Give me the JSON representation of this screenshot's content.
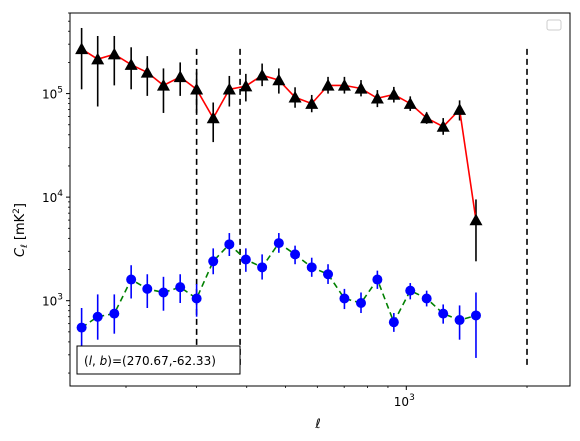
{
  "chart_data": {
    "type": "line",
    "xlabel": "ℓ",
    "ylabel": "C",
    "ylabel_sub": "ℓ",
    "ylabel_unit": "[mK",
    "ylabel_unit_sup": "2",
    "ylabel_unit_end": "]",
    "xscale": "log",
    "yscale": "log",
    "xlim": [
      145,
      2560
    ],
    "ylim": [
      150,
      600000
    ],
    "x_ticks": [
      {
        "value": 1000,
        "label_base": "10",
        "label_exp": "3"
      }
    ],
    "y_ticks": [
      {
        "value": 1000,
        "label_base": "10",
        "label_exp": "3"
      },
      {
        "value": 10000,
        "label_base": "10",
        "label_exp": "4"
      },
      {
        "value": 100000,
        "label_base": "10",
        "label_exp": "5"
      }
    ],
    "vlines": [
      300,
      385,
      2000
    ],
    "vline_range": [
      230,
      270000
    ],
    "annotation": "(l, b)=(270.67,-62.33)",
    "annotation_parts": [
      "(",
      "l",
      ", ",
      "b",
      ")=(270.67,-62.33)"
    ],
    "legend": "top-right",
    "colors": {
      "upper_line": "#ff0000",
      "upper_marker": "#000000",
      "lower_line": "#008000",
      "lower_marker": "#0000ff"
    },
    "series": [
      {
        "marker": "triangle",
        "line": "solid",
        "points": [
          {
            "x": 155,
            "y": 270000,
            "lo": 110000,
            "hi": 430000
          },
          {
            "x": 170,
            "y": 215000,
            "lo": 75000,
            "hi": 360000
          },
          {
            "x": 187,
            "y": 240000,
            "lo": 120000,
            "hi": 360000
          },
          {
            "x": 206,
            "y": 190000,
            "lo": 110000,
            "hi": 280000
          },
          {
            "x": 226,
            "y": 160000,
            "lo": 95000,
            "hi": 230000
          },
          {
            "x": 248,
            "y": 120000,
            "lo": 65000,
            "hi": 175000
          },
          {
            "x": 273,
            "y": 145000,
            "lo": 95000,
            "hi": 200000
          },
          {
            "x": 300,
            "y": 110000,
            "lo": 65000,
            "hi": 160000
          },
          {
            "x": 330,
            "y": 58000,
            "lo": 34000,
            "hi": 82000
          },
          {
            "x": 362,
            "y": 110000,
            "lo": 75000,
            "hi": 148000
          },
          {
            "x": 398,
            "y": 118000,
            "lo": 84000,
            "hi": 155000
          },
          {
            "x": 437,
            "y": 150000,
            "lo": 118000,
            "hi": 195000
          },
          {
            "x": 481,
            "y": 135000,
            "lo": 100000,
            "hi": 175000
          },
          {
            "x": 528,
            "y": 92000,
            "lo": 73000,
            "hi": 115000
          },
          {
            "x": 581,
            "y": 80000,
            "lo": 66000,
            "hi": 97000
          },
          {
            "x": 638,
            "y": 120000,
            "lo": 100000,
            "hi": 145000
          },
          {
            "x": 701,
            "y": 120000,
            "lo": 100000,
            "hi": 145000
          },
          {
            "x": 771,
            "y": 112000,
            "lo": 94000,
            "hi": 135000
          },
          {
            "x": 847,
            "y": 90000,
            "lo": 74000,
            "hi": 108000
          },
          {
            "x": 931,
            "y": 98000,
            "lo": 82000,
            "hi": 116000
          },
          {
            "x": 1023,
            "y": 80000,
            "lo": 68000,
            "hi": 94000
          },
          {
            "x": 1124,
            "y": 58000,
            "lo": 51000,
            "hi": 66000
          },
          {
            "x": 1236,
            "y": 48000,
            "lo": 40000,
            "hi": 58000
          },
          {
            "x": 1358,
            "y": 70000,
            "lo": 55000,
            "hi": 86000
          },
          {
            "x": 1492,
            "y": 6000,
            "lo": 2400,
            "hi": 9500
          }
        ]
      },
      {
        "marker": "circle",
        "line": "dashed",
        "points": [
          {
            "x": 155,
            "y": 550,
            "lo": 350,
            "hi": 850
          },
          {
            "x": 170,
            "y": 700,
            "lo": 420,
            "hi": 1150
          },
          {
            "x": 187,
            "y": 750,
            "lo": 480,
            "hi": 1150
          },
          {
            "x": 206,
            "y": 1600,
            "lo": 1050,
            "hi": 2200
          },
          {
            "x": 226,
            "y": 1300,
            "lo": 850,
            "hi": 1800
          },
          {
            "x": 248,
            "y": 1200,
            "lo": 800,
            "hi": 1700
          },
          {
            "x": 273,
            "y": 1350,
            "lo": 950,
            "hi": 1800
          },
          {
            "x": 300,
            "y": 1050,
            "lo": 700,
            "hi": 1450
          },
          {
            "x": 330,
            "y": 2400,
            "lo": 1800,
            "hi": 3200
          },
          {
            "x": 362,
            "y": 3500,
            "lo": 2700,
            "hi": 4500
          },
          {
            "x": 398,
            "y": 2500,
            "lo": 1900,
            "hi": 3200
          },
          {
            "x": 437,
            "y": 2100,
            "lo": 1600,
            "hi": 2800
          },
          {
            "x": 481,
            "y": 3600,
            "lo": 2900,
            "hi": 4500
          },
          {
            "x": 528,
            "y": 2800,
            "lo": 2250,
            "hi": 3400
          },
          {
            "x": 581,
            "y": 2100,
            "lo": 1700,
            "hi": 2600
          },
          {
            "x": 638,
            "y": 1800,
            "lo": 1450,
            "hi": 2250
          },
          {
            "x": 701,
            "y": 1050,
            "lo": 830,
            "hi": 1300
          },
          {
            "x": 771,
            "y": 950,
            "lo": 760,
            "hi": 1200
          },
          {
            "x": 847,
            "y": 1600,
            "lo": 1300,
            "hi": 1950
          },
          {
            "x": 931,
            "y": 620,
            "lo": 500,
            "hi": 760
          },
          {
            "x": 1023,
            "y": 1250,
            "lo": 1030,
            "hi": 1480
          },
          {
            "x": 1124,
            "y": 1050,
            "lo": 880,
            "hi": 1250
          },
          {
            "x": 1236,
            "y": 750,
            "lo": 600,
            "hi": 920
          },
          {
            "x": 1358,
            "y": 650,
            "lo": 420,
            "hi": 900
          },
          {
            "x": 1492,
            "y": 720,
            "lo": 280,
            "hi": 1200
          }
        ]
      }
    ]
  }
}
